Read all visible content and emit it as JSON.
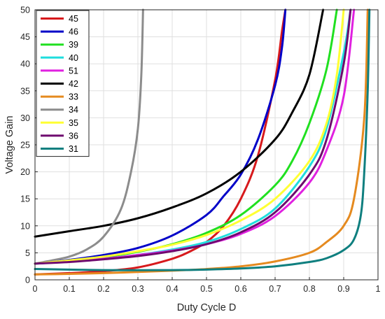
{
  "chart_data": {
    "type": "line",
    "title": "",
    "xlabel": "Duty Cycle D",
    "ylabel": "Voltage Gain",
    "xlim": [
      0,
      1
    ],
    "ylim": [
      0,
      50
    ],
    "xticks": [
      0,
      0.1,
      0.2,
      0.3,
      0.4,
      0.5,
      0.6,
      0.7,
      0.8,
      0.9,
      1
    ],
    "xtick_labels": [
      "0",
      "0.1",
      "0.2",
      "0.3",
      "0.4",
      "0.5",
      "0.6",
      "0.7",
      "0.8",
      "0.9",
      "1"
    ],
    "yticks": [
      0,
      5,
      10,
      15,
      20,
      25,
      30,
      35,
      40,
      45,
      50
    ],
    "ytick_labels": [
      "0",
      "5",
      "10",
      "15",
      "20",
      "25",
      "30",
      "35",
      "40",
      "45",
      "50"
    ],
    "grid": true,
    "legend_position": "top-left",
    "x": [
      0,
      0.05,
      0.1,
      0.15,
      0.2,
      0.25,
      0.3,
      0.35,
      0.4,
      0.45,
      0.5,
      0.55,
      0.6,
      0.65,
      0.7,
      0.75,
      0.8,
      0.85,
      0.9,
      0.95,
      0.98
    ],
    "series": [
      {
        "name": "45",
        "color": "#d7191c",
        "points": [
          [
            0,
            1.0
          ],
          [
            0.1,
            1.24
          ],
          [
            0.2,
            1.6
          ],
          [
            0.3,
            2.3
          ],
          [
            0.4,
            3.9
          ],
          [
            0.45,
            5.2
          ],
          [
            0.5,
            7.0
          ],
          [
            0.55,
            10.0
          ],
          [
            0.6,
            15.0
          ],
          [
            0.65,
            23.0
          ],
          [
            0.7,
            37.0
          ],
          [
            0.72,
            46.0
          ],
          [
            0.73,
            50.0
          ]
        ]
      },
      {
        "name": "46",
        "color": "#0000c8",
        "points": [
          [
            0,
            3.0
          ],
          [
            0.1,
            3.7
          ],
          [
            0.2,
            4.6
          ],
          [
            0.3,
            5.9
          ],
          [
            0.4,
            8.2
          ],
          [
            0.5,
            12.0
          ],
          [
            0.55,
            15.5
          ],
          [
            0.6,
            19.5
          ],
          [
            0.65,
            26.0
          ],
          [
            0.7,
            36.0
          ],
          [
            0.72,
            43.0
          ],
          [
            0.73,
            50.0
          ]
        ]
      },
      {
        "name": "39",
        "color": "#20e020",
        "points": [
          [
            0,
            3.0
          ],
          [
            0.1,
            3.5
          ],
          [
            0.2,
            4.2
          ],
          [
            0.3,
            5.2
          ],
          [
            0.4,
            6.6
          ],
          [
            0.5,
            8.7
          ],
          [
            0.6,
            12.0
          ],
          [
            0.7,
            17.5
          ],
          [
            0.75,
            22.0
          ],
          [
            0.8,
            29.0
          ],
          [
            0.85,
            39.0
          ],
          [
            0.88,
            50.0
          ]
        ]
      },
      {
        "name": "40",
        "color": "#20dede",
        "points": [
          [
            0,
            3.0
          ],
          [
            0.1,
            3.4
          ],
          [
            0.2,
            3.9
          ],
          [
            0.3,
            4.6
          ],
          [
            0.4,
            5.6
          ],
          [
            0.5,
            7.0
          ],
          [
            0.6,
            9.4
          ],
          [
            0.7,
            13.2
          ],
          [
            0.8,
            21.0
          ],
          [
            0.85,
            28.0
          ],
          [
            0.9,
            42.0
          ],
          [
            0.92,
            50.0
          ]
        ]
      },
      {
        "name": "51",
        "color": "#e020e0",
        "points": [
          [
            0,
            3.0
          ],
          [
            0.1,
            3.4
          ],
          [
            0.2,
            3.9
          ],
          [
            0.3,
            4.6
          ],
          [
            0.4,
            5.4
          ],
          [
            0.5,
            6.6
          ],
          [
            0.6,
            8.5
          ],
          [
            0.7,
            11.8
          ],
          [
            0.8,
            18.0
          ],
          [
            0.85,
            24.0
          ],
          [
            0.9,
            34.0
          ],
          [
            0.93,
            50.0
          ]
        ]
      },
      {
        "name": "42",
        "color": "#000000",
        "points": [
          [
            0,
            8.0
          ],
          [
            0.1,
            9.0
          ],
          [
            0.2,
            10.0
          ],
          [
            0.3,
            11.4
          ],
          [
            0.4,
            13.4
          ],
          [
            0.5,
            16.0
          ],
          [
            0.6,
            20.0
          ],
          [
            0.7,
            26.0
          ],
          [
            0.75,
            31.0
          ],
          [
            0.8,
            38.0
          ],
          [
            0.84,
            50.0
          ]
        ]
      },
      {
        "name": "33",
        "color": "#e58a1f",
        "points": [
          [
            0,
            1.0
          ],
          [
            0.1,
            1.1
          ],
          [
            0.2,
            1.25
          ],
          [
            0.3,
            1.45
          ],
          [
            0.4,
            1.7
          ],
          [
            0.5,
            2.0
          ],
          [
            0.6,
            2.5
          ],
          [
            0.7,
            3.4
          ],
          [
            0.8,
            5.0
          ],
          [
            0.85,
            7.0
          ],
          [
            0.9,
            10.0
          ],
          [
            0.93,
            15.0
          ],
          [
            0.96,
            30.0
          ],
          [
            0.97,
            50.0
          ]
        ]
      },
      {
        "name": "34",
        "color": "#8c8c8c",
        "points": [
          [
            0,
            3.0
          ],
          [
            0.05,
            3.6
          ],
          [
            0.1,
            4.3
          ],
          [
            0.15,
            5.6
          ],
          [
            0.2,
            8.0
          ],
          [
            0.25,
            13.0
          ],
          [
            0.28,
            20.0
          ],
          [
            0.3,
            28.0
          ],
          [
            0.31,
            38.0
          ],
          [
            0.315,
            50.0
          ]
        ]
      },
      {
        "name": "35",
        "color": "#ffff33",
        "points": [
          [
            0,
            3.0
          ],
          [
            0.1,
            3.6
          ],
          [
            0.2,
            4.3
          ],
          [
            0.3,
            5.3
          ],
          [
            0.4,
            6.5
          ],
          [
            0.5,
            8.3
          ],
          [
            0.6,
            11.0
          ],
          [
            0.7,
            15.0
          ],
          [
            0.8,
            22.0
          ],
          [
            0.85,
            29.0
          ],
          [
            0.88,
            38.0
          ],
          [
            0.9,
            50.0
          ]
        ]
      },
      {
        "name": "36",
        "color": "#6e0a6e",
        "points": [
          [
            0,
            3.0
          ],
          [
            0.1,
            3.3
          ],
          [
            0.2,
            3.8
          ],
          [
            0.3,
            4.4
          ],
          [
            0.4,
            5.3
          ],
          [
            0.5,
            6.6
          ],
          [
            0.6,
            8.8
          ],
          [
            0.7,
            12.5
          ],
          [
            0.8,
            19.5
          ],
          [
            0.85,
            26.0
          ],
          [
            0.9,
            40.0
          ],
          [
            0.92,
            50.0
          ]
        ]
      },
      {
        "name": "31",
        "color": "#0f7f7f",
        "points": [
          [
            0,
            2.0
          ],
          [
            0.2,
            1.8
          ],
          [
            0.4,
            1.8
          ],
          [
            0.5,
            1.9
          ],
          [
            0.6,
            2.1
          ],
          [
            0.7,
            2.5
          ],
          [
            0.8,
            3.3
          ],
          [
            0.85,
            4.0
          ],
          [
            0.9,
            5.5
          ],
          [
            0.93,
            7.5
          ],
          [
            0.95,
            12.0
          ],
          [
            0.96,
            20.0
          ],
          [
            0.97,
            35.0
          ],
          [
            0.975,
            50.0
          ]
        ]
      }
    ]
  }
}
